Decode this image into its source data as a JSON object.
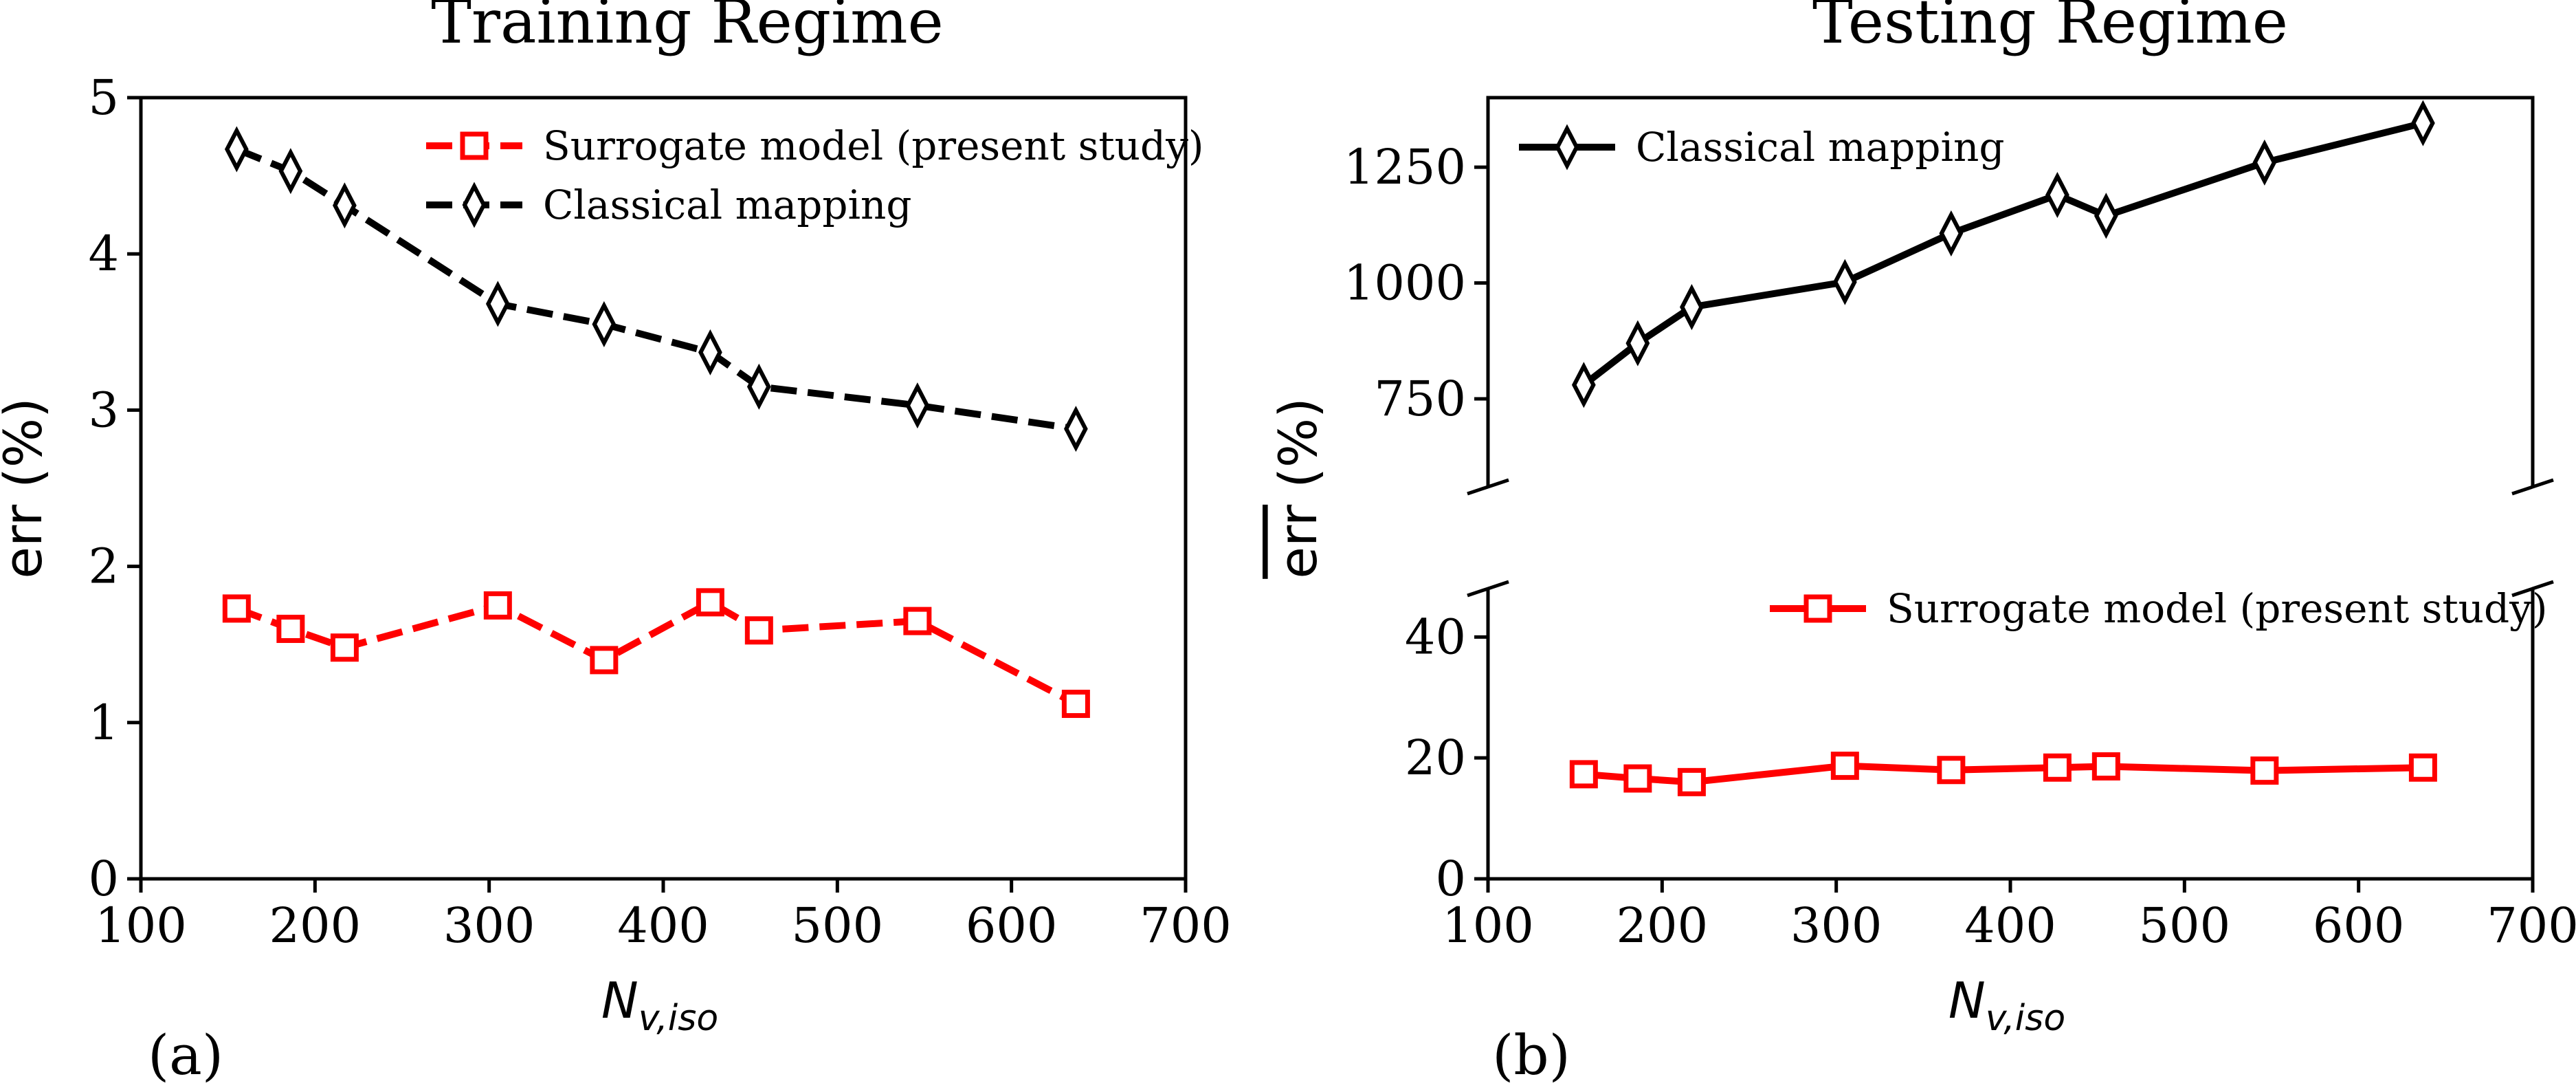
{
  "chart_data": [
    {
      "type": "line",
      "title": "Training Regime",
      "panel_label": "(a)",
      "xlabel": "N",
      "xlabel_sub": "v,iso",
      "ylabel_main": "err",
      "ylabel_unit": " (%)",
      "xlim": [
        100,
        700
      ],
      "ylim": [
        0,
        5
      ],
      "xticks": [
        "100",
        "200",
        "300",
        "400",
        "500",
        "600",
        "700"
      ],
      "yticks": [
        "0",
        "1",
        "2",
        "3",
        "4",
        "5"
      ],
      "legend_position": "upper-right",
      "series": [
        {
          "name": "Surrogate model (present study)",
          "color": "#ff0000",
          "marker": "square",
          "linestyle": "dashed",
          "x": [
            155,
            186,
            217,
            305,
            366,
            427,
            455,
            546,
            637
          ],
          "y": [
            1.73,
            1.6,
            1.48,
            1.75,
            1.4,
            1.77,
            1.59,
            1.65,
            1.12
          ]
        },
        {
          "name": "Classical mapping",
          "color": "#000000",
          "marker": "diamond",
          "linestyle": "dashed",
          "x": [
            155,
            186,
            217,
            305,
            366,
            427,
            455,
            546,
            637
          ],
          "y": [
            4.67,
            4.53,
            4.31,
            3.68,
            3.55,
            3.37,
            3.15,
            3.03,
            2.88
          ]
        }
      ]
    },
    {
      "type": "line",
      "title": "Testing Regime",
      "panel_label": "(b)",
      "xlabel": "N",
      "xlabel_sub": "v,iso",
      "ylabel_main": "err",
      "ylabel_unit": " (%)",
      "xlim": [
        100,
        700
      ],
      "broken_y_axis": true,
      "upper_ylim": [
        560,
        1400
      ],
      "lower_ylim": [
        0,
        48
      ],
      "upper_yticks": [
        "750",
        "1000",
        "1250"
      ],
      "lower_yticks": [
        "0",
        "20",
        "40"
      ],
      "xticks": [
        "100",
        "200",
        "300",
        "400",
        "500",
        "600",
        "700"
      ],
      "series": [
        {
          "name": "Classical mapping",
          "color": "#000000",
          "marker": "diamond",
          "linestyle": "solid",
          "legend_position": "upper-left",
          "x": [
            155,
            186,
            217,
            305,
            366,
            427,
            455,
            546,
            637
          ],
          "y": [
            780,
            870,
            948,
            1002,
            1107,
            1190,
            1145,
            1260,
            1345
          ]
        },
        {
          "name": "Surrogate model (present study)",
          "color": "#ff0000",
          "marker": "square",
          "linestyle": "solid",
          "legend_position": "upper-right",
          "x": [
            155,
            186,
            217,
            305,
            366,
            427,
            455,
            546,
            637
          ],
          "y": [
            17.3,
            16.6,
            16.0,
            18.7,
            18.0,
            18.4,
            18.6,
            17.9,
            18.4
          ]
        }
      ]
    }
  ]
}
